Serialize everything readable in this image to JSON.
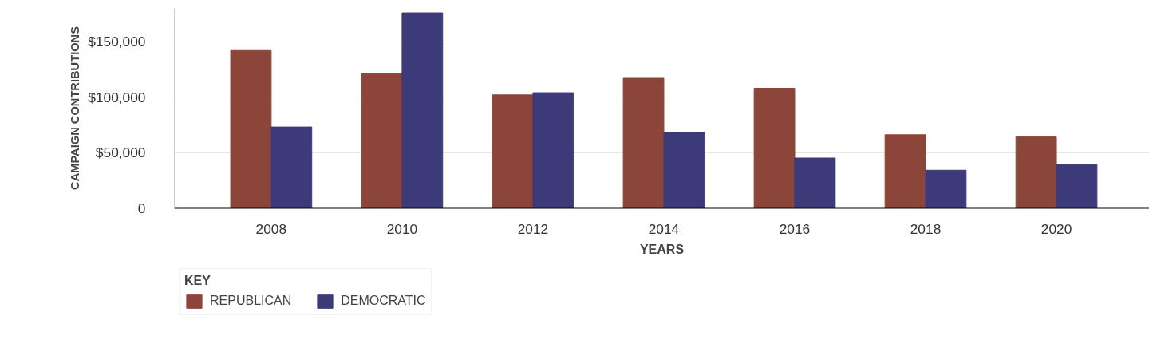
{
  "chart_data": {
    "type": "bar",
    "xlabel": "YEARS",
    "ylabel": "CAMPAIGN CONTRIBUTIONS",
    "legend_title": "KEY",
    "categories": [
      "2008",
      "2010",
      "2012",
      "2014",
      "2016",
      "2018",
      "2020"
    ],
    "series": [
      {
        "name": "REPUBLICAN",
        "color": "#8b4539",
        "values": [
          142000,
          121000,
          102000,
          117000,
          108000,
          66000,
          64000
        ]
      },
      {
        "name": "DEMOCRATIC",
        "color": "#3d3a7a",
        "values": [
          73000,
          176000,
          104000,
          68000,
          45000,
          34000,
          39000
        ]
      }
    ],
    "ylim": [
      0,
      180000
    ],
    "yticks": [
      0,
      {
        "value": 50000,
        "label": "$50,000"
      },
      {
        "value": 100000,
        "label": "$100,000"
      },
      {
        "value": 150000,
        "label": "$150,000"
      }
    ],
    "grid": "y",
    "legend": "bottom left"
  }
}
